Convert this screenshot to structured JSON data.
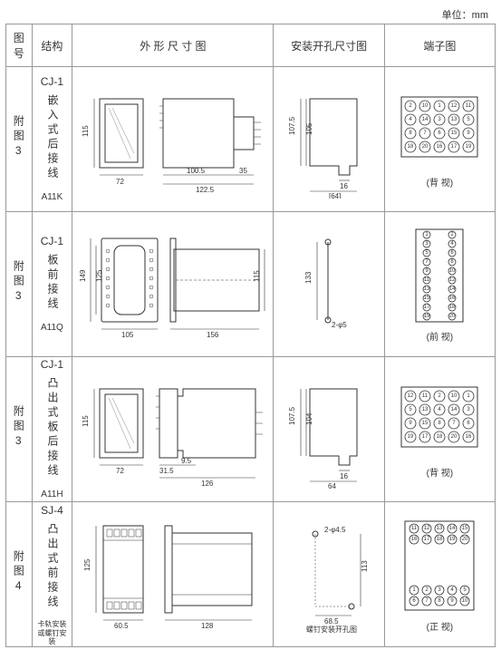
{
  "unit_label": "单位：mm",
  "headers": {
    "fig_no": "图号",
    "structure": "结构",
    "outline": "外 形 尺 寸 图",
    "mounting": "安装开孔尺寸图",
    "terminal": "端子图"
  },
  "rows": [
    {
      "fig_no": "附图3",
      "model": "CJ-1",
      "struct_desc": "嵌入式后接线",
      "model_code": "A11K",
      "outline": {
        "front_w": 72,
        "front_h": 115,
        "side_w1": 100.5,
        "side_total": 122.5,
        "side_ext": 35
      },
      "mounting": {
        "h1": 107.5,
        "h2": 105,
        "w_inner": 16,
        "w_outer": 64
      },
      "terminal": {
        "layout": "grid-5x4-rear",
        "caption": "(背 视)",
        "numbers": [
          [
            2,
            10,
            1,
            12,
            11
          ],
          [
            4,
            14,
            3,
            13,
            5
          ],
          [
            8,
            7,
            6,
            15,
            9
          ],
          [
            18,
            20,
            16,
            17,
            19
          ]
        ]
      }
    },
    {
      "fig_no": "附图3",
      "model": "CJ-1",
      "struct_desc": "板前接线",
      "model_code": "A11Q",
      "outline": {
        "front_w": 105,
        "front_h1": 149,
        "front_h2": 125,
        "side_w": 156,
        "side_h": 115
      },
      "mounting": {
        "h": 133,
        "hole": "2-φ5"
      },
      "terminal": {
        "layout": "two-col-10x2-front",
        "caption": "(前 视)",
        "left": [
          1,
          3,
          5,
          7,
          9,
          11,
          13,
          15,
          17,
          19
        ],
        "right": [
          2,
          4,
          6,
          8,
          10,
          12,
          14,
          16,
          18,
          20
        ]
      }
    },
    {
      "fig_no": "附图3",
      "model": "CJ-1",
      "struct_desc": "凸出式板后接线",
      "model_code": "A11H",
      "outline": {
        "front_w": 72,
        "front_h": 115,
        "side_base": 31.5,
        "side_notch": 9.5,
        "side_total": 126
      },
      "mounting": {
        "h1": 107.5,
        "h2": 104,
        "w_inner": 16,
        "w_outer": 64
      },
      "terminal": {
        "layout": "grid-5x4-rear",
        "caption": "(背 视)",
        "numbers": [
          [
            12,
            11,
            2,
            10,
            1
          ],
          [
            5,
            13,
            4,
            14,
            3
          ],
          [
            9,
            15,
            8,
            7,
            6
          ],
          [
            19,
            17,
            18,
            20,
            16
          ]
        ]
      }
    },
    {
      "fig_no": "附图4",
      "model": "SJ-4",
      "struct_desc": "凸出式前接线",
      "model_code": "卡轨安装或螺钉安装",
      "outline": {
        "front_w": 60.5,
        "front_h": 125,
        "side_w": 128
      },
      "mounting": {
        "h": 113,
        "w": 68.5,
        "hole": "2-φ4.5",
        "note": "螺钉安装开孔图"
      },
      "terminal": {
        "layout": "two-row-top-bottom",
        "caption": "(正 视)",
        "top": [
          [
            11,
            12,
            13,
            14,
            15
          ],
          [
            16,
            17,
            18,
            19,
            20
          ]
        ],
        "bottom": [
          [
            1,
            2,
            3,
            4,
            5
          ],
          [
            6,
            7,
            8,
            9,
            10
          ]
        ]
      }
    }
  ],
  "colors": {
    "border": "#999999",
    "stroke": "#333333",
    "background": "#ffffff"
  }
}
